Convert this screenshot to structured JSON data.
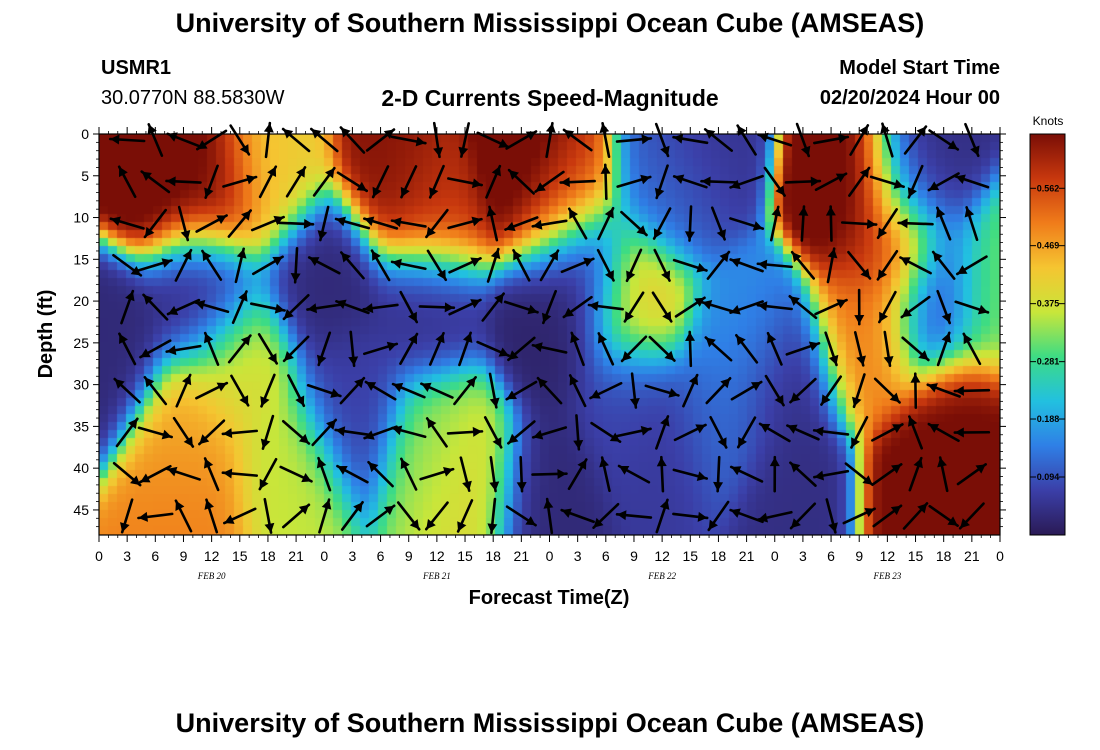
{
  "header": {
    "title": "University of Southern Mississippi Ocean Cube (AMSEAS)",
    "station_id": "USMR1",
    "coordinates": "30.0770N  88.5830W",
    "plot_title": "2-D Currents Speed-Magnitude",
    "model_start_label": "Model Start Time",
    "model_start_value": "02/20/2024 Hour 00"
  },
  "footer": {
    "title": "University of Southern Mississippi Ocean Cube (AMSEAS)"
  },
  "colors": {
    "ramp": [
      "#2a1a55",
      "#3b3fa8",
      "#2f7fe6",
      "#22c0e0",
      "#3ddc84",
      "#c8e63a",
      "#f5c531",
      "#f07c1a",
      "#c8380e",
      "#7a0e06"
    ]
  },
  "chart_data": {
    "type": "heatmap",
    "title": "2-D Currents Speed-Magnitude",
    "xlabel": "Forecast Time(Z)",
    "ylabel": "Depth (ft)",
    "x_range_hours": [
      0,
      96
    ],
    "y_range_ft": [
      0,
      48
    ],
    "x_ticks": [
      "0",
      "3",
      "6",
      "9",
      "12",
      "15",
      "18",
      "21",
      "0",
      "3",
      "6",
      "9",
      "12",
      "15",
      "18",
      "21",
      "0",
      "3",
      "6",
      "9",
      "12",
      "15",
      "18",
      "21",
      "0",
      "3",
      "6",
      "9",
      "12",
      "15",
      "18",
      "21",
      "0"
    ],
    "date_labels": [
      {
        "text": "FEB 20",
        "hour": 12
      },
      {
        "text": "FEB 21",
        "hour": 36
      },
      {
        "text": "FEB 22",
        "hour": 60
      },
      {
        "text": "FEB 23",
        "hour": 84
      }
    ],
    "y_ticks": [
      0,
      5,
      10,
      15,
      20,
      25,
      30,
      35,
      40,
      45
    ],
    "colorbar": {
      "label": "Knots",
      "ticks": [
        "0.562",
        "0.469",
        "0.375",
        "0.281",
        "0.188",
        "0.094"
      ],
      "range": [
        0,
        0.65
      ]
    },
    "speed_features_knots": [
      {
        "hour": 6,
        "depth_ft": 4,
        "speed": 0.68
      },
      {
        "hour": 12,
        "depth_ft": 6,
        "speed": 0.66
      },
      {
        "hour": 18,
        "depth_ft": 4,
        "speed": 0.42
      },
      {
        "hour": 24,
        "depth_ft": 18,
        "speed": 0.03
      },
      {
        "hour": 11,
        "depth_ft": 19,
        "speed": 0.04
      },
      {
        "hour": 1,
        "depth_ft": 25,
        "speed": 0.03
      },
      {
        "hour": 15,
        "depth_ft": 28,
        "speed": 0.38
      },
      {
        "hour": 10,
        "depth_ft": 36,
        "speed": 0.46
      },
      {
        "hour": 10,
        "depth_ft": 43,
        "speed": 0.5
      },
      {
        "hour": 20,
        "depth_ft": 40,
        "speed": 0.36
      },
      {
        "hour": 27,
        "depth_ft": 32,
        "speed": 0.07
      },
      {
        "hour": 32,
        "depth_ft": 4,
        "speed": 0.64
      },
      {
        "hour": 36,
        "depth_ft": 8,
        "speed": 0.58
      },
      {
        "hour": 35,
        "depth_ft": 21,
        "speed": 0.05
      },
      {
        "hour": 36,
        "depth_ft": 37,
        "speed": 0.32
      },
      {
        "hour": 39,
        "depth_ft": 40,
        "speed": 0.4
      },
      {
        "hour": 45,
        "depth_ft": 3,
        "speed": 0.7
      },
      {
        "hour": 49,
        "depth_ft": 7,
        "speed": 0.56
      },
      {
        "hour": 48,
        "depth_ft": 24,
        "speed": 0.02
      },
      {
        "hour": 51,
        "depth_ft": 17,
        "speed": 0.02
      },
      {
        "hour": 48,
        "depth_ft": 42,
        "speed": 0.03
      },
      {
        "hour": 57,
        "depth_ft": 20,
        "speed": 0.42
      },
      {
        "hour": 56,
        "depth_ft": 32,
        "speed": 0.08
      },
      {
        "hour": 61,
        "depth_ft": 6,
        "speed": 0.12
      },
      {
        "hour": 64,
        "depth_ft": 2,
        "speed": 0.05
      },
      {
        "hour": 60,
        "depth_ft": 38,
        "speed": 0.06
      },
      {
        "hour": 66,
        "depth_ft": 34,
        "speed": 0.12
      },
      {
        "hour": 69,
        "depth_ft": 25,
        "speed": 0.16
      },
      {
        "hour": 73,
        "depth_ft": 30,
        "speed": 0.04
      },
      {
        "hour": 74,
        "depth_ft": 44,
        "speed": 0.04
      },
      {
        "hour": 80,
        "depth_ft": 6,
        "speed": 0.68
      },
      {
        "hour": 84,
        "depth_ft": 14,
        "speed": 0.6
      },
      {
        "hour": 82,
        "depth_ft": 24,
        "speed": 0.5
      },
      {
        "hour": 87,
        "depth_ft": 5,
        "speed": 0.04
      },
      {
        "hour": 89,
        "depth_ft": 20,
        "speed": 0.06
      },
      {
        "hour": 92,
        "depth_ft": 35,
        "speed": 0.66
      },
      {
        "hour": 88,
        "depth_ft": 44,
        "speed": 0.66
      },
      {
        "hour": 95,
        "depth_ft": 20,
        "speed": 0.32
      }
    ],
    "vector_grid": {
      "x_spacing_hours": 3,
      "y_spacing_ft": 5,
      "x_start_hour": 3,
      "y_start_ft": 0,
      "arrow_style": "black"
    }
  }
}
